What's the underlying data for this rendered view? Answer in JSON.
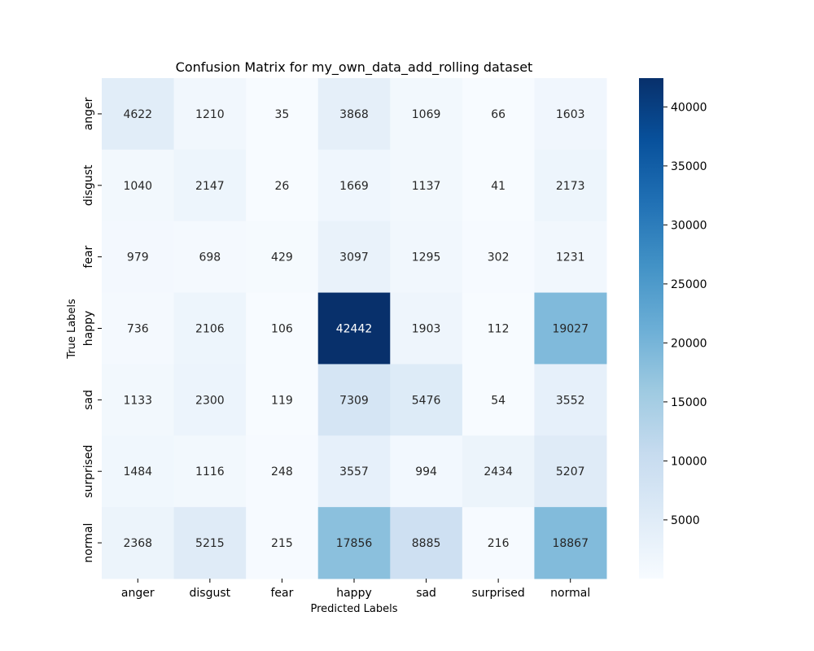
{
  "chart_data": {
    "type": "heatmap",
    "title": "Confusion Matrix for my_own_data_add_rolling dataset",
    "xlabel": "Predicted Labels",
    "ylabel": "True Labels",
    "x_categories": [
      "anger",
      "disgust",
      "fear",
      "happy",
      "sad",
      "surprised",
      "normal"
    ],
    "y_categories": [
      "anger",
      "disgust",
      "fear",
      "happy",
      "sad",
      "surprised",
      "normal"
    ],
    "values": [
      [
        4622,
        1210,
        35,
        3868,
        1069,
        66,
        1603
      ],
      [
        1040,
        2147,
        26,
        1669,
        1137,
        41,
        2173
      ],
      [
        979,
        698,
        429,
        3097,
        1295,
        302,
        1231
      ],
      [
        736,
        2106,
        106,
        42442,
        1903,
        112,
        19027
      ],
      [
        1133,
        2300,
        119,
        7309,
        5476,
        54,
        3552
      ],
      [
        1484,
        1116,
        248,
        3557,
        994,
        2434,
        5207
      ],
      [
        2368,
        5215,
        215,
        17856,
        8885,
        216,
        18867
      ]
    ],
    "colormap": "Blues",
    "colorbar": {
      "range": [
        26,
        42442
      ],
      "ticks": [
        5000,
        10000,
        15000,
        20000,
        25000,
        30000,
        35000,
        40000
      ]
    }
  }
}
